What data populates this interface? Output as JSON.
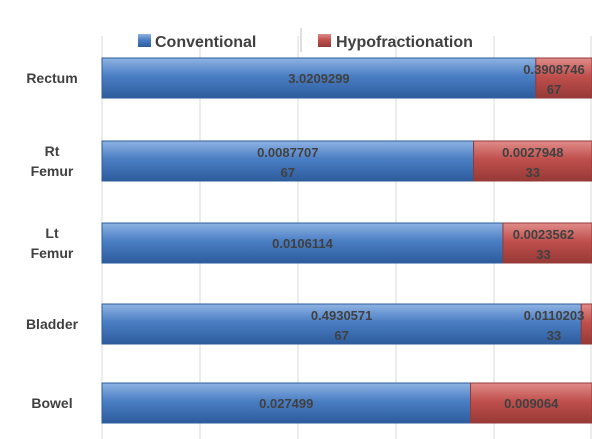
{
  "colors": {
    "conventional": "#4a7ec4",
    "conventional_light": "#8fb3e2",
    "conventional_dark": "#2d5c9c",
    "hypofractionation": "#c0504d",
    "hypofractionation_light": "#e08c89",
    "hypofractionation_dark": "#963a37",
    "grid": "#d9d9d9",
    "text": "#404040"
  },
  "chart_data": {
    "type": "bar",
    "orientation": "horizontal",
    "stacked": "100%",
    "categories": [
      "Rectum",
      "Rt Femur",
      "Lt Femur",
      "Bladder",
      "Bowel"
    ],
    "category_lines": [
      [
        "Rectum"
      ],
      [
        "Rt",
        "Femur"
      ],
      [
        "Lt",
        "Femur"
      ],
      [
        "Bladder"
      ],
      [
        "Bowel"
      ]
    ],
    "series": [
      {
        "name": "Conventional",
        "values": [
          3.0209299,
          0.008770767,
          0.0106114,
          0.493057167,
          0.027499
        ],
        "labels": [
          [
            "3.0209299"
          ],
          [
            "0.0087707",
            "67"
          ],
          [
            "0.0106114"
          ],
          [
            "0.4930571",
            "67"
          ],
          [
            "0.027499"
          ]
        ]
      },
      {
        "name": "Hypofractionation",
        "values": [
          0.390874667,
          0.002794833,
          0.002356233,
          0.011020333,
          0.009064
        ],
        "labels": [
          [
            "0.3908746",
            "67"
          ],
          [
            "0.0027948",
            "33"
          ],
          [
            "0.0023562",
            "33"
          ],
          [
            "0.0110203",
            "33"
          ],
          [
            "0.009064"
          ]
        ]
      }
    ],
    "legend": "top",
    "grid": true,
    "xlim": [
      0,
      1
    ]
  }
}
